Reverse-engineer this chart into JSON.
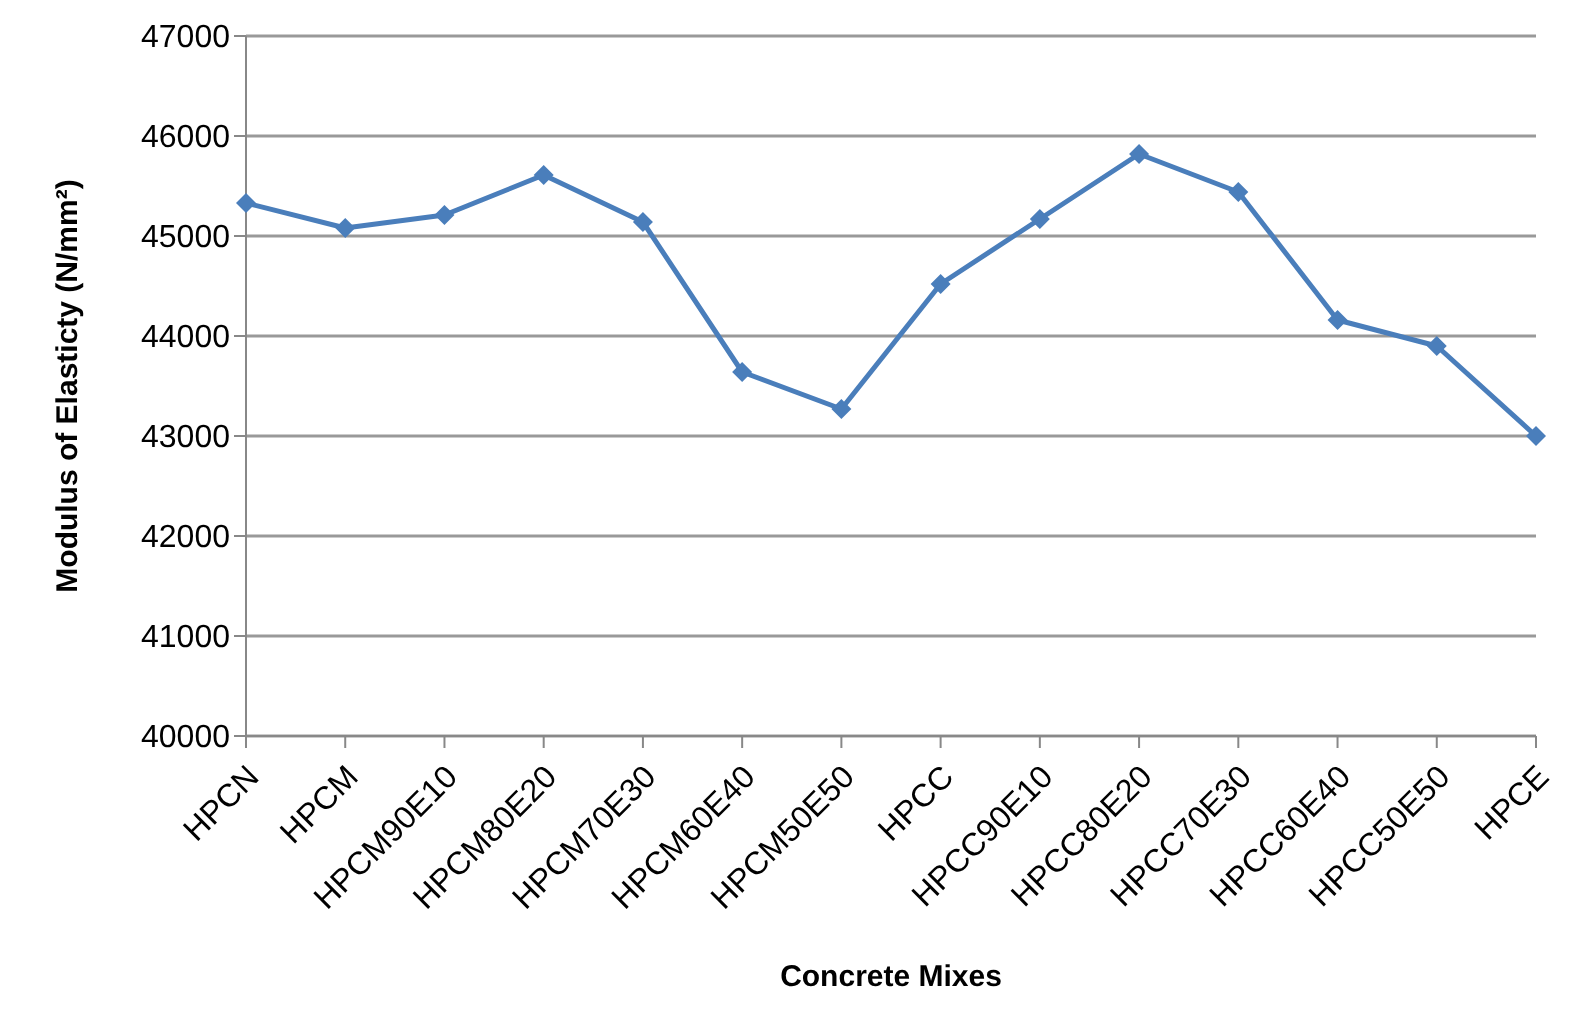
{
  "chart_data": {
    "type": "line",
    "xlabel": "Concrete Mixes",
    "ylabel": "Modulus of Elasticty (N/mm²)",
    "categories": [
      "HPCN",
      "HPCM",
      "HPCM90E10",
      "HPCM80E20",
      "HPCM70E30",
      "HPCM60E40",
      "HPCM50E50",
      "HPCC",
      "HPCC90E10",
      "HPCC80E20",
      "HPCC70E30",
      "HPCC60E40",
      "HPCC50E50",
      "HPCE"
    ],
    "series": [
      {
        "color": "#4a7ebb",
        "values": [
          45330,
          45080,
          45210,
          45610,
          45140,
          43640,
          43270,
          44520,
          45170,
          45820,
          45440,
          44160,
          43900,
          43000
        ]
      }
    ],
    "ylim": [
      40000,
      47000
    ],
    "yticks": [
      40000,
      41000,
      42000,
      43000,
      44000,
      45000,
      46000,
      47000
    ],
    "grid": "y",
    "marker": "diamond",
    "legend": false
  }
}
